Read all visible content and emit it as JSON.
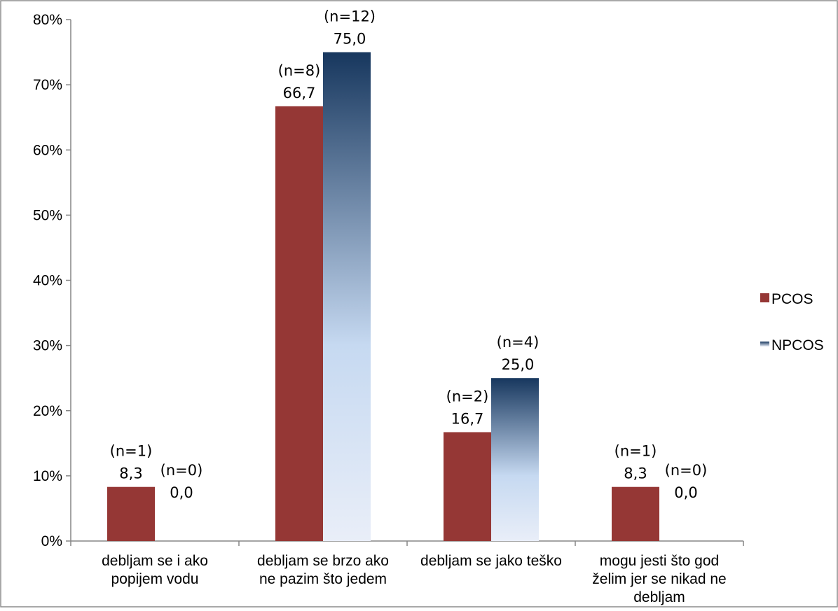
{
  "chart_data": {
    "type": "bar",
    "categories": [
      [
        "debljam se i ako",
        "popijem vodu"
      ],
      [
        "debljam se brzo ako",
        "ne pazim što jedem"
      ],
      [
        "debljam se jako teško"
      ],
      [
        "mogu jesti što god",
        "želim jer se nikad ne",
        "debljam"
      ]
    ],
    "series": [
      {
        "name": "PCOS",
        "color": "#953735",
        "values": [
          8.3,
          66.7,
          16.7,
          8.3
        ],
        "value_labels": [
          "8,3",
          "66,7",
          "16,7",
          "8,3"
        ],
        "n_labels": [
          "(n=1)",
          "(n=8)",
          "(n=2)",
          "(n=1)"
        ]
      },
      {
        "name": "NPCOS",
        "gradient": [
          "#17375e",
          "#c6d9f1",
          "#e9eef8"
        ],
        "values": [
          0.0,
          75.0,
          25.0,
          0.0
        ],
        "value_labels": [
          "0,0",
          "75,0",
          "25,0",
          "0,0"
        ],
        "n_labels": [
          "(n=0)",
          "(n=12)",
          "(n=4)",
          "(n=0)"
        ]
      }
    ],
    "ylim": [
      0,
      80
    ],
    "yticks": [
      "0%",
      "10%",
      "20%",
      "30%",
      "40%",
      "50%",
      "60%",
      "70%",
      "80%"
    ],
    "ytick_values": [
      0,
      10,
      20,
      30,
      40,
      50,
      60,
      70,
      80
    ],
    "grid": false,
    "legend": "right"
  }
}
